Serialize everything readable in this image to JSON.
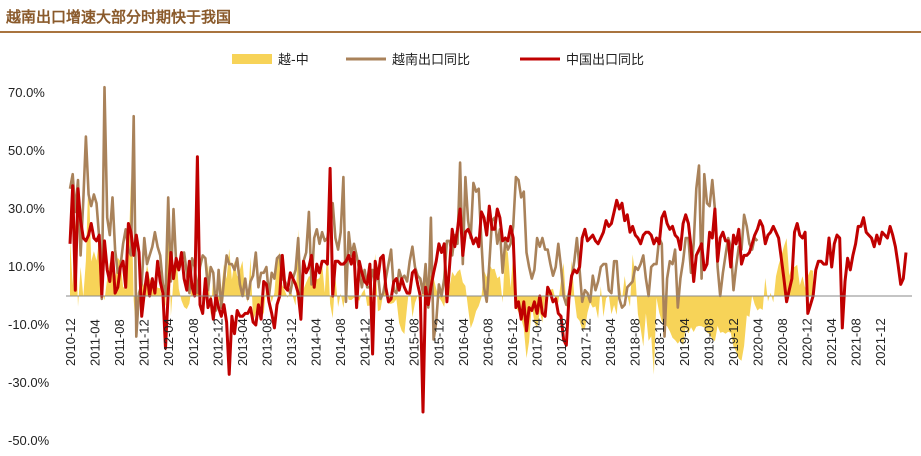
{
  "title": "越南出口增速大部分时期快于我国",
  "chart_data": {
    "type": "line",
    "ylim": [
      -50,
      80
    ],
    "yticks": [
      -50,
      -30,
      -10,
      10,
      30,
      50,
      70
    ],
    "ytick_labels": [
      "-50.0%",
      "-30.0%",
      "-10.0%",
      "10.0%",
      "30.0%",
      "50.0%",
      "70.0%"
    ],
    "xtick_labels": [
      "2010-12",
      "2011-04",
      "2011-08",
      "2011-12",
      "2012-04",
      "2012-08",
      "2012-12",
      "2013-04",
      "2013-08",
      "2013-12",
      "2014-04",
      "2014-08",
      "2014-12",
      "2015-04",
      "2015-08",
      "2015-12",
      "2016-04",
      "2016-08",
      "2016-12",
      "2017-04",
      "2017-08",
      "2017-12",
      "2018-04",
      "2018-08",
      "2018-12",
      "2019-04",
      "2019-08",
      "2019-12",
      "2020-04",
      "2020-08",
      "2020-12",
      "2021-04",
      "2021-08",
      "2021-12"
    ],
    "x_start": "2010-12",
    "grid": false,
    "legend_position": "top",
    "series": [
      {
        "name": "越-中",
        "kind": "area",
        "color": "#f7d358",
        "values": [
          19.5,
          3.7,
          26.2,
          -3.7,
          10.0,
          -0.2,
          12.2,
          42.9,
          11.9,
          15.5,
          12.2,
          19.9,
          1.6,
          -1.4,
          6.1,
          11.6,
          7.7,
          5.7,
          13.2,
          12.0,
          3.2,
          2.2,
          12.9,
          40.8,
          -1.4,
          -13.8,
          -0.6,
          6.0,
          3.0,
          10.9,
          6.1,
          3.5,
          5.2,
          2.8,
          2.7,
          -2.7,
          -3.3,
          33.4,
          -6.9,
          6.0,
          15.5,
          2.5,
          -1.6,
          -3.8,
          -4.5,
          -2.6,
          4.2,
          4.7,
          2.1,
          2.1,
          -1.9,
          -0.8,
          11.7,
          -6.9,
          7.6,
          -1.6,
          -2.6,
          1.9,
          10.9,
          5.9,
          16.3,
          5.7,
          12.1,
          6.7,
          9.1,
          12.1,
          0.9,
          -2.2,
          13.4,
          -8.6,
          -5.8,
          -6.4,
          -3.3,
          -6.5,
          4.4,
          2.0,
          -2.2,
          1.1,
          12.5,
          15.1,
          3.8,
          1.7,
          -0.6,
          1.9,
          -0.2,
          -3.3,
          23.0,
          -3.3,
          2.3,
          4.7,
          6.8,
          6.7,
          6.5,
          5.7,
          6.2,
          11.3,
          1.1,
          18.0,
          -2.7,
          -7.7,
          6.5,
          -3.8,
          0.9,
          -4.1,
          2.5,
          -1.3,
          -1.4,
          -0.6,
          -0.6,
          -1.7,
          1.0,
          2.4,
          -3.4,
          -3.3,
          1.1,
          14.6,
          -5.3,
          -4.8,
          0.8,
          2.4,
          -2.7,
          -2.7,
          -2.3,
          -1.1,
          -9.2,
          -12.0,
          -13.1,
          -3.7,
          4.4,
          -7.3,
          -2.4,
          0.2,
          -3.9,
          2.8,
          10.3,
          5.3,
          7.2,
          6.3,
          2.5,
          -0.4,
          -1.9,
          -3.8,
          4.0,
          3.1,
          8.3,
          6.8,
          8.4,
          9.2,
          4.7,
          3.5,
          -4.2,
          -11.1,
          -8.7,
          -5.2,
          -3.5,
          -0.6,
          8.8,
          6.5,
          11.1,
          9.2,
          9.4,
          6.1,
          6.8,
          -2.3,
          16.8,
          14.9,
          2.8,
          14.6,
          -3.7,
          -5.6,
          -7.8,
          -11.1,
          -21.4,
          -15.7,
          -3.1,
          -9.1,
          -11.1,
          -5.5,
          -9.2,
          -0.6,
          2.7,
          2.1,
          2.5,
          -1.5,
          -2.3,
          5.5,
          11.4,
          -3.5,
          -5.2,
          12.5,
          -0.1,
          -7.4,
          -8.6,
          -11.5,
          -11.5,
          -5.8,
          -2.3,
          -4.0,
          -3.6,
          -7.8,
          3.4,
          -7.2,
          -0.8,
          0.3,
          -6.3,
          -3.1,
          -6.5,
          4.8,
          -1.5,
          6.9,
          0.1,
          -3.7,
          14.3,
          7.1,
          -6.2,
          -11.1,
          -17.4,
          -6.0,
          -15.5,
          -13.9,
          -27.1,
          -0.6,
          -5.7,
          -8.8,
          -9.7,
          -10.4,
          -12.1,
          -14.4,
          -15.2,
          -16.4,
          -15.3,
          -17.0,
          -11.0,
          -12.9,
          -10.8,
          -12.4,
          -10.6,
          -10.3,
          -10.4,
          -10.9,
          -12.6,
          -13.1,
          -14.8,
          -15.6,
          -10.3,
          -12.7,
          -12.4,
          -13.0,
          -12.3,
          -12.7,
          -17.5,
          -19.1,
          -21.6,
          -22.3,
          -17.2,
          -6.7,
          -7.2,
          0.2,
          -2.9,
          -5.0,
          -4.2,
          -4.8,
          6.2,
          -1.9,
          1.1,
          -2.2,
          6.8,
          10.8,
          13.7,
          17.1,
          19.9,
          7.0,
          10.3,
          10.0,
          10.8,
          3.7,
          6.8,
          2.8,
          6.9,
          9.0,
          8.7
        ]
      },
      {
        "name": "越南出口同比",
        "kind": "line",
        "color": "#a9825a",
        "values": [
          37,
          42,
          29,
          40,
          14,
          33,
          55,
          35,
          31,
          35,
          32,
          20,
          -1,
          72,
          27,
          21,
          34,
          16,
          8,
          10,
          18,
          23,
          16,
          14,
          62,
          -14,
          1,
          4,
          20,
          11,
          14,
          17,
          22,
          17,
          14,
          4,
          0,
          34,
          5,
          30,
          11,
          9,
          12,
          15,
          8,
          1,
          13,
          10,
          1,
          10,
          14,
          13,
          2,
          10,
          8,
          -5,
          9,
          -4,
          5,
          14,
          11,
          11,
          9,
          13,
          4,
          0,
          6,
          -1,
          5,
          7,
          15,
          3,
          8,
          8,
          10,
          0,
          8,
          6,
          13,
          14,
          6,
          5,
          3,
          1,
          6,
          9,
          20,
          -1,
          12,
          15,
          29,
          4,
          20,
          23,
          18,
          22,
          19,
          20,
          26,
          32,
          20,
          16,
          22,
          41,
          -2,
          22,
          14,
          18,
          14,
          9,
          3,
          9,
          3,
          3,
          9,
          5,
          8,
          -1,
          1,
          6,
          11,
          16,
          2,
          1,
          9,
          6,
          7,
          5,
          12,
          17,
          10,
          7,
          6,
          1,
          11,
          -4,
          27,
          -15,
          -9,
          4,
          0,
          6,
          19,
          19,
          14,
          21,
          18,
          46,
          11,
          41,
          26,
          20,
          39,
          36,
          37,
          19,
          3,
          -2,
          11,
          26,
          27,
          18,
          23,
          8,
          19,
          16,
          18,
          24,
          41,
          40,
          34,
          36,
          15,
          10,
          6,
          9,
          20,
          17,
          20,
          16,
          16,
          11,
          7,
          10,
          18,
          10,
          0,
          -3,
          1,
          6,
          12,
          20,
          9,
          -2,
          2,
          1,
          -2,
          7,
          2,
          5,
          10,
          11,
          11,
          2,
          1,
          12,
          12,
          -1,
          -4,
          -3,
          3,
          4,
          5,
          10,
          9,
          11,
          14,
          6,
          0,
          10,
          11,
          11,
          20,
          18,
          -14,
          6,
          12,
          11,
          16,
          -4,
          6,
          12,
          20,
          20,
          8,
          18,
          37,
          45,
          6,
          42,
          32,
          31,
          40,
          30,
          10,
          0,
          8,
          14,
          20,
          17,
          2,
          10,
          17,
          16,
          28,
          24,
          18,
          16,
          20,
          19
        ]
      },
      {
        "name": "中国出口同比",
        "kind": "line",
        "color": "#c00000",
        "values": [
          18,
          38,
          2,
          37,
          26,
          20,
          19,
          21,
          25,
          20,
          19,
          21,
          0,
          19,
          9,
          5,
          15,
          1,
          3,
          10,
          12,
          3,
          25,
          22,
          14,
          21,
          15,
          -7,
          1,
          8,
          0,
          6,
          1,
          12,
          5,
          1,
          -18,
          1,
          15,
          6,
          13,
          9,
          15,
          6,
          2,
          12,
          3,
          0,
          48,
          -3,
          -6,
          6,
          -4,
          -1,
          -8,
          0,
          -4,
          -7,
          -3,
          -9,
          -27,
          -7,
          -13,
          -5,
          -7,
          -7,
          -6,
          -6,
          -4,
          -9,
          -10,
          -3,
          -8,
          5,
          4,
          -2,
          -6,
          -11,
          -3,
          0,
          14,
          3,
          2,
          8,
          6,
          4,
          1,
          -8,
          12,
          8,
          10,
          14,
          3,
          11,
          8,
          12,
          12,
          11,
          44,
          0,
          12,
          12,
          11,
          11,
          12,
          14,
          11,
          15,
          -4,
          12,
          8,
          5,
          4,
          11,
          -20,
          12,
          6,
          13,
          14,
          3,
          -2,
          -1,
          5,
          6,
          2,
          6,
          3,
          1,
          1,
          8,
          9,
          4,
          0,
          -40,
          3,
          -3,
          3,
          8,
          12,
          18,
          15,
          18,
          -2,
          10,
          23,
          17,
          23,
          30,
          14,
          22,
          23,
          21,
          18,
          20,
          17,
          29,
          27,
          21,
          31,
          23,
          23,
          30,
          27,
          19,
          20,
          19,
          24,
          20,
          -4,
          -2,
          -8,
          -2,
          -12,
          -4,
          -5,
          -2,
          -6,
          0,
          -6,
          -7,
          3,
          1,
          -2,
          -1,
          -6,
          -7,
          -15,
          -17,
          -1,
          7,
          9,
          8,
          10,
          20,
          23,
          19,
          20,
          21,
          19,
          18,
          20,
          22,
          26,
          24,
          25,
          29,
          33,
          30,
          32,
          26,
          28,
          22,
          24,
          21,
          20,
          18,
          21,
          22,
          22,
          21,
          18,
          20,
          18,
          27,
          29,
          25,
          23,
          24,
          21,
          20,
          16,
          25,
          28,
          25,
          17,
          5,
          14,
          16,
          18,
          9,
          11,
          22,
          20,
          30,
          12,
          20,
          22,
          19,
          19,
          10,
          21,
          18,
          23,
          11,
          14,
          14,
          15,
          18,
          21,
          23,
          26,
          24,
          18,
          21,
          22,
          24,
          22,
          20,
          13,
          6,
          -2,
          2,
          6,
          22,
          25,
          21,
          20,
          22,
          -6,
          -3,
          0,
          9,
          12,
          12,
          11,
          11,
          20,
          10,
          18,
          21,
          20,
          -11,
          5,
          13,
          9,
          14,
          18,
          24,
          24,
          27,
          22,
          21,
          20,
          17,
          21,
          18,
          22,
          21,
          20,
          24,
          21,
          17,
          11,
          4,
          6,
          15
        ]
      }
    ]
  }
}
